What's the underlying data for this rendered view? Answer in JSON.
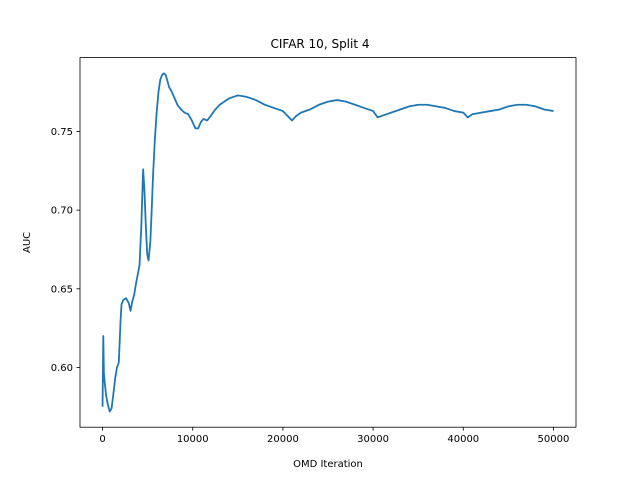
{
  "chart_data": {
    "type": "line",
    "title": "CIFAR 10, Split 4",
    "xlabel": "OMD Iteration",
    "ylabel": "AUC",
    "xlim": [
      -2500,
      52500
    ],
    "ylim": [
      0.562,
      0.797
    ],
    "xticks": [
      0,
      10000,
      20000,
      30000,
      40000,
      50000
    ],
    "xtick_labels": [
      "0",
      "10000",
      "20000",
      "30000",
      "40000",
      "50000"
    ],
    "yticks": [
      0.6,
      0.65,
      0.7,
      0.75
    ],
    "ytick_labels": [
      "0.60",
      "0.65",
      "0.70",
      "0.75"
    ],
    "grid": false,
    "line_color": "#1f77b4",
    "series": [
      {
        "x": [
          0,
          80,
          150,
          250,
          400,
          600,
          800,
          1000,
          1200,
          1400,
          1600,
          1800,
          2000,
          2100,
          2300,
          2600,
          2900,
          3100,
          3300,
          3500,
          3700,
          3900,
          4100,
          4300,
          4500,
          4650,
          4800,
          4950,
          5100,
          5300,
          5450,
          5600,
          5800,
          6000,
          6200,
          6400,
          6600,
          6800,
          7000,
          7200,
          7400,
          7700,
          8000,
          8300,
          8700,
          9100,
          9500,
          9900,
          10300,
          10600,
          10900,
          11200,
          11600,
          12000,
          12500,
          13000,
          13500,
          14000,
          14500,
          15000,
          16000,
          17000,
          18000,
          19000,
          20000,
          20500,
          21000,
          21500,
          22000,
          23000,
          24000,
          25000,
          26000,
          27000,
          28000,
          29000,
          30000,
          30500,
          31000,
          32000,
          33000,
          34000,
          35000,
          36000,
          37000,
          38000,
          39000,
          40000,
          40500,
          41000,
          42000,
          43000,
          44000,
          45000,
          46000,
          47000,
          48000,
          49000,
          50000
        ],
        "y": [
          0.575,
          0.62,
          0.596,
          0.59,
          0.582,
          0.576,
          0.572,
          0.574,
          0.583,
          0.593,
          0.6,
          0.603,
          0.63,
          0.64,
          0.643,
          0.644,
          0.641,
          0.636,
          0.642,
          0.646,
          0.653,
          0.659,
          0.665,
          0.69,
          0.726,
          0.712,
          0.69,
          0.672,
          0.668,
          0.68,
          0.7,
          0.722,
          0.745,
          0.762,
          0.775,
          0.783,
          0.786,
          0.787,
          0.786,
          0.782,
          0.778,
          0.775,
          0.771,
          0.767,
          0.764,
          0.762,
          0.761,
          0.757,
          0.752,
          0.752,
          0.756,
          0.758,
          0.757,
          0.76,
          0.764,
          0.767,
          0.769,
          0.771,
          0.772,
          0.773,
          0.772,
          0.77,
          0.767,
          0.765,
          0.763,
          0.76,
          0.757,
          0.76,
          0.762,
          0.764,
          0.767,
          0.769,
          0.77,
          0.769,
          0.767,
          0.765,
          0.763,
          0.759,
          0.76,
          0.762,
          0.764,
          0.766,
          0.767,
          0.767,
          0.766,
          0.765,
          0.763,
          0.762,
          0.759,
          0.761,
          0.762,
          0.763,
          0.764,
          0.766,
          0.767,
          0.767,
          0.766,
          0.764,
          0.763
        ]
      }
    ]
  }
}
